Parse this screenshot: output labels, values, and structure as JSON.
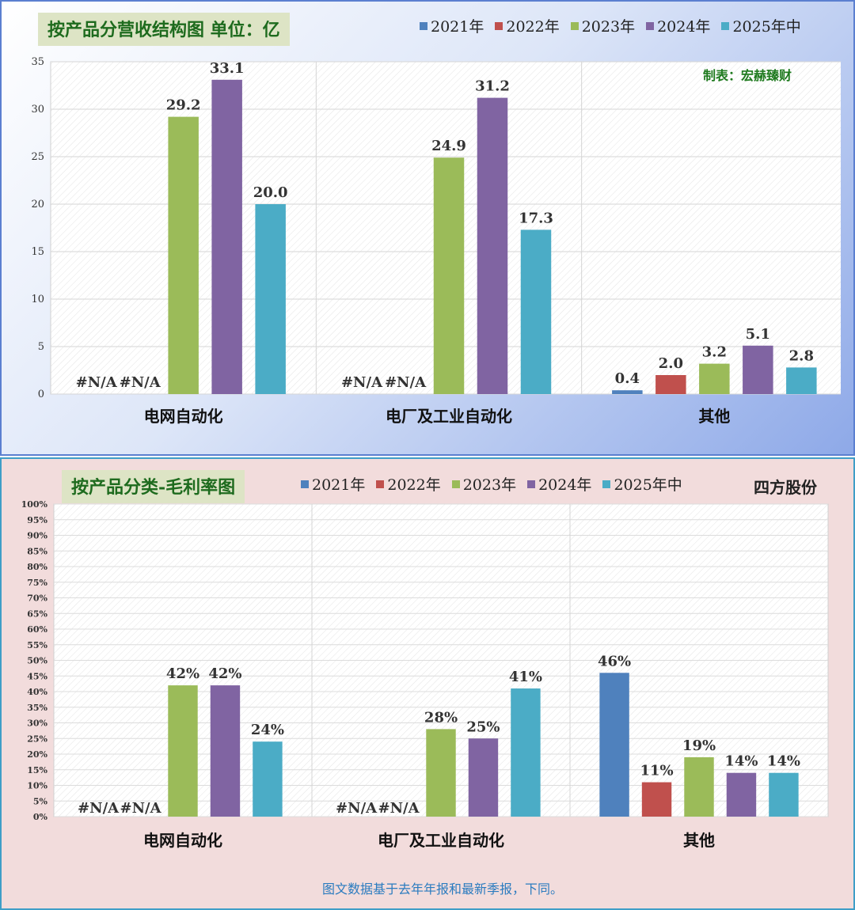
{
  "colors": {
    "2021年": "#4f81bd",
    "2022年": "#c0504d",
    "2023年": "#9bbb59",
    "2024年": "#8064a2",
    "2025年中": "#4bacc6"
  },
  "legend": [
    "2021年",
    "2022年",
    "2023年",
    "2024年",
    "2025年中"
  ],
  "panel1": {
    "title": "按产品分营收结构图 单位：亿",
    "note": "制表：宏赫臻财"
  },
  "panel2": {
    "title": "按产品分类-毛利率图",
    "company": "四方股份",
    "footer": "图文数据基于去年年报和最新季报，下同。"
  },
  "chart_data": [
    {
      "type": "bar",
      "title": "按产品分营收结构图 单位：亿",
      "categories": [
        "电网自动化",
        "电厂及工业自动化",
        "其他"
      ],
      "ylim": [
        0,
        35
      ],
      "yticks": [
        0,
        5,
        10,
        15,
        20,
        25,
        30,
        35
      ],
      "grid": true,
      "legend_position": "top",
      "series": [
        {
          "name": "2021年",
          "values": [
            null,
            null,
            0.4
          ],
          "labels": [
            "#N/A",
            "#N/A",
            "0.4"
          ]
        },
        {
          "name": "2022年",
          "values": [
            null,
            null,
            2.0
          ],
          "labels": [
            "#N/A",
            "#N/A",
            "2.0"
          ]
        },
        {
          "name": "2023年",
          "values": [
            29.2,
            24.9,
            3.2
          ],
          "labels": [
            "29.2",
            "24.9",
            "3.2"
          ]
        },
        {
          "name": "2024年",
          "values": [
            33.1,
            31.2,
            5.1
          ],
          "labels": [
            "33.1",
            "31.2",
            "5.1"
          ]
        },
        {
          "name": "2025年中",
          "values": [
            20.0,
            17.3,
            2.8
          ],
          "labels": [
            "20.0",
            "17.3",
            "2.8"
          ]
        }
      ]
    },
    {
      "type": "bar",
      "title": "按产品分类-毛利率图",
      "categories": [
        "电网自动化",
        "电厂及工业自动化",
        "其他"
      ],
      "ylim": [
        0,
        100
      ],
      "yticks": [
        0,
        5,
        10,
        15,
        20,
        25,
        30,
        35,
        40,
        45,
        50,
        55,
        60,
        65,
        70,
        75,
        80,
        85,
        90,
        95,
        100
      ],
      "yticklabel_suffix": "%",
      "grid": true,
      "legend_position": "top",
      "series": [
        {
          "name": "2021年",
          "values": [
            null,
            null,
            46
          ],
          "labels": [
            "#N/A",
            "#N/A",
            "46%"
          ]
        },
        {
          "name": "2022年",
          "values": [
            null,
            null,
            11
          ],
          "labels": [
            "#N/A",
            "#N/A",
            "11%"
          ]
        },
        {
          "name": "2023年",
          "values": [
            42,
            28,
            19
          ],
          "labels": [
            "42%",
            "28%",
            "19%"
          ]
        },
        {
          "name": "2024年",
          "values": [
            42,
            25,
            14
          ],
          "labels": [
            "42%",
            "25%",
            "14%"
          ]
        },
        {
          "name": "2025年中",
          "values": [
            24,
            41,
            14
          ],
          "labels": [
            "24%",
            "41%",
            "14%"
          ]
        }
      ]
    }
  ]
}
